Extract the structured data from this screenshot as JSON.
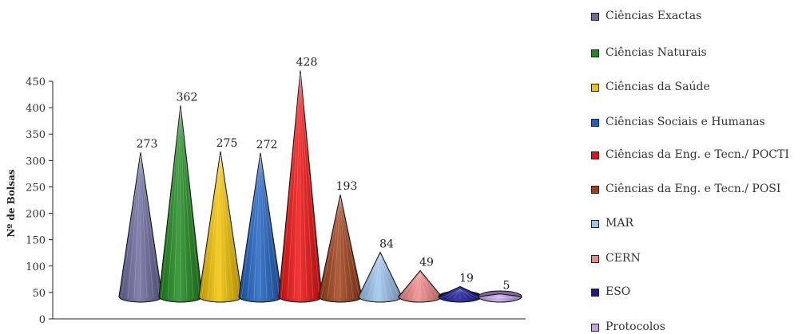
{
  "chart_data": {
    "type": "bar",
    "ylabel": "Nº de Bolsas",
    "ylim": [
      0,
      450
    ],
    "yticks": [
      0,
      50,
      100,
      150,
      200,
      250,
      300,
      350,
      400,
      450
    ],
    "grid": false,
    "legend_position": "right",
    "series": [
      {
        "name": "Ciências Exactas",
        "value": 273,
        "label": "273",
        "color": "#6b6b9e"
      },
      {
        "name": "Ciências Naturais",
        "value": 362,
        "label": "362",
        "color": "#1f8a1f"
      },
      {
        "name": "Ciências da Saúde",
        "value": 275,
        "label": "275",
        "color": "#f2c300"
      },
      {
        "name": "Ciências Sociais e Humanas",
        "value": 272,
        "label": "272",
        "color": "#1f63c2"
      },
      {
        "name": "Ciências da Eng. e Tecn./ POCTI",
        "value": 428,
        "label": "428",
        "color": "#ee1111"
      },
      {
        "name": "Ciências da Eng. e Tecn./ POSI",
        "value": 193,
        "label": "193",
        "color": "#a0401a"
      },
      {
        "name": "MAR",
        "value": 84,
        "label": "84",
        "color": "#9cc4ee"
      },
      {
        "name": "CERN",
        "value": 49,
        "label": "49",
        "color": "#f08888"
      },
      {
        "name": "ESO",
        "value": 19,
        "label": "19",
        "color": "#1a1a9a"
      },
      {
        "name": "Protocolos",
        "value": 5,
        "label": "5",
        "color": "#c4a3ec"
      }
    ]
  }
}
